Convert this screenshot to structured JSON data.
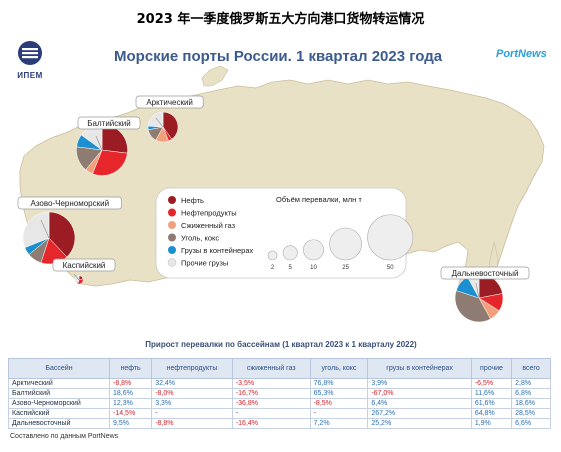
{
  "page_title": "2023 年一季度俄罗斯五大方向港口货物转运情况",
  "figure": {
    "title": "Морские порты России. 1 квартал 2023 года",
    "logo_left": "ИПЕМ",
    "logo_right": "PortNews",
    "source": "Составлено по данным PortNews"
  },
  "colors": {
    "map_land": "#e9e1c6",
    "oil": "#9b1c22",
    "oil_products": "#e5262b",
    "lng": "#f2a07c",
    "coal": "#8e7c72",
    "containers": "#1c8fd1",
    "other": "#e7e7e7"
  },
  "chart_data": [
    {
      "type": "pie",
      "title": "Морские порты России. 1 квартал 2023 года",
      "legend": {
        "placement": "center",
        "categories": [
          "Нефть",
          "Нефтепродукты",
          "Сжиженный газ",
          "Уголь, кокс",
          "Грузы в контейнерах",
          "Прочие грузы"
        ]
      },
      "size_legend": {
        "title": "Объём перевалки, млн т",
        "values": [
          2,
          5,
          10,
          25,
          50
        ]
      },
      "pies": [
        {
          "basin": "Арктический",
          "total": 22,
          "shares": [
            0.4,
            0.04,
            0.14,
            0.14,
            0.04,
            0.24
          ]
        },
        {
          "basin": "Балтийский",
          "total": 64,
          "shares": [
            0.27,
            0.29,
            0.05,
            0.16,
            0.08,
            0.15
          ]
        },
        {
          "basin": "Азово-Черноморский",
          "total": 66,
          "shares": [
            0.38,
            0.17,
            0.0,
            0.09,
            0.05,
            0.31
          ]
        },
        {
          "basin": "Каспийский",
          "total": 1.7,
          "shares": [
            0.2,
            0.35,
            0.0,
            0.0,
            0.05,
            0.4
          ]
        },
        {
          "basin": "Дальневосточный",
          "total": 56,
          "shares": [
            0.22,
            0.12,
            0.08,
            0.38,
            0.12,
            0.08
          ]
        }
      ]
    },
    {
      "type": "table",
      "title": "Прирост перевалки по бассейнам (1 квартал 2023 к 1 кварталу 2022)",
      "columns": [
        "Бассейн",
        "нефть",
        "нефтепродукты",
        "сжиженный газ",
        "уголь, кокс",
        "грузы в контейнерах",
        "прочие",
        "всего"
      ],
      "rows": [
        [
          "Арктический",
          "-8,8%",
          "32,4%",
          "-3,5%",
          "76,8%",
          "3,9%",
          "-6,5%",
          "2,8%"
        ],
        [
          "Балтийский",
          "18,6%",
          "-8,0%",
          "-16,7%",
          "65,3%",
          "-67,0%",
          "11,6%",
          "6,8%"
        ],
        [
          "Азово-Черноморский",
          "12,3%",
          "3,3%",
          "-36,8%",
          "-8,5%",
          "6,4%",
          "61,6%",
          "18,6%"
        ],
        [
          "Каспийский",
          "-14,5%",
          "-",
          "-",
          "-",
          "267,2%",
          "64,8%",
          "28,5%"
        ],
        [
          "Дальневосточный",
          "9,5%",
          "-8,8%",
          "-16,4%",
          "7,2%",
          "25,2%",
          "1,9%",
          "6,6%"
        ]
      ]
    }
  ]
}
